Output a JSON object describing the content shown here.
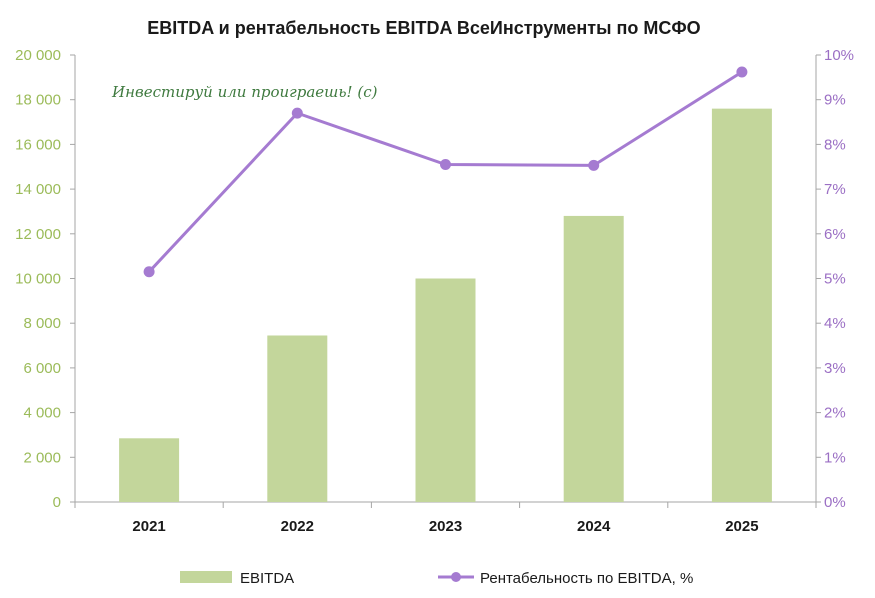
{
  "chart_data": {
    "type": "bar+line",
    "title": "EBITDA и рентабельность EBITDA ВсеИнструменты по МСФО",
    "watermark": "Инвестируй или проиграешь! (с)",
    "categories": [
      "2021",
      "2022",
      "2023",
      "2024",
      "2025"
    ],
    "series": [
      {
        "name": "EBITDA",
        "type": "bar",
        "axis": "left",
        "color": "#c3d69b",
        "values": [
          2850,
          7450,
          10000,
          12800,
          17600
        ]
      },
      {
        "name": "Рентабельность по EBITDA, %",
        "type": "line",
        "axis": "right",
        "color": "#a57bd1",
        "values": [
          5.15,
          8.7,
          7.55,
          7.53,
          9.62
        ]
      }
    ],
    "left_axis": {
      "min": 0,
      "max": 20000,
      "ticks": [
        "0",
        "2 000",
        "4 000",
        "6 000",
        "8 000",
        "10 000",
        "12 000",
        "14 000",
        "16 000",
        "18 000",
        "20 000"
      ],
      "color": "#9bbb59"
    },
    "right_axis": {
      "min": 0,
      "max": 10,
      "ticks": [
        "0%",
        "1%",
        "2%",
        "3%",
        "4%",
        "5%",
        "6%",
        "7%",
        "8%",
        "9%",
        "10%"
      ],
      "color": "#9b6fc4"
    },
    "legend": {
      "position": "bottom",
      "items": [
        "EBITDA",
        "Рентабельность по EBITDA, %"
      ]
    },
    "grid": false
  }
}
